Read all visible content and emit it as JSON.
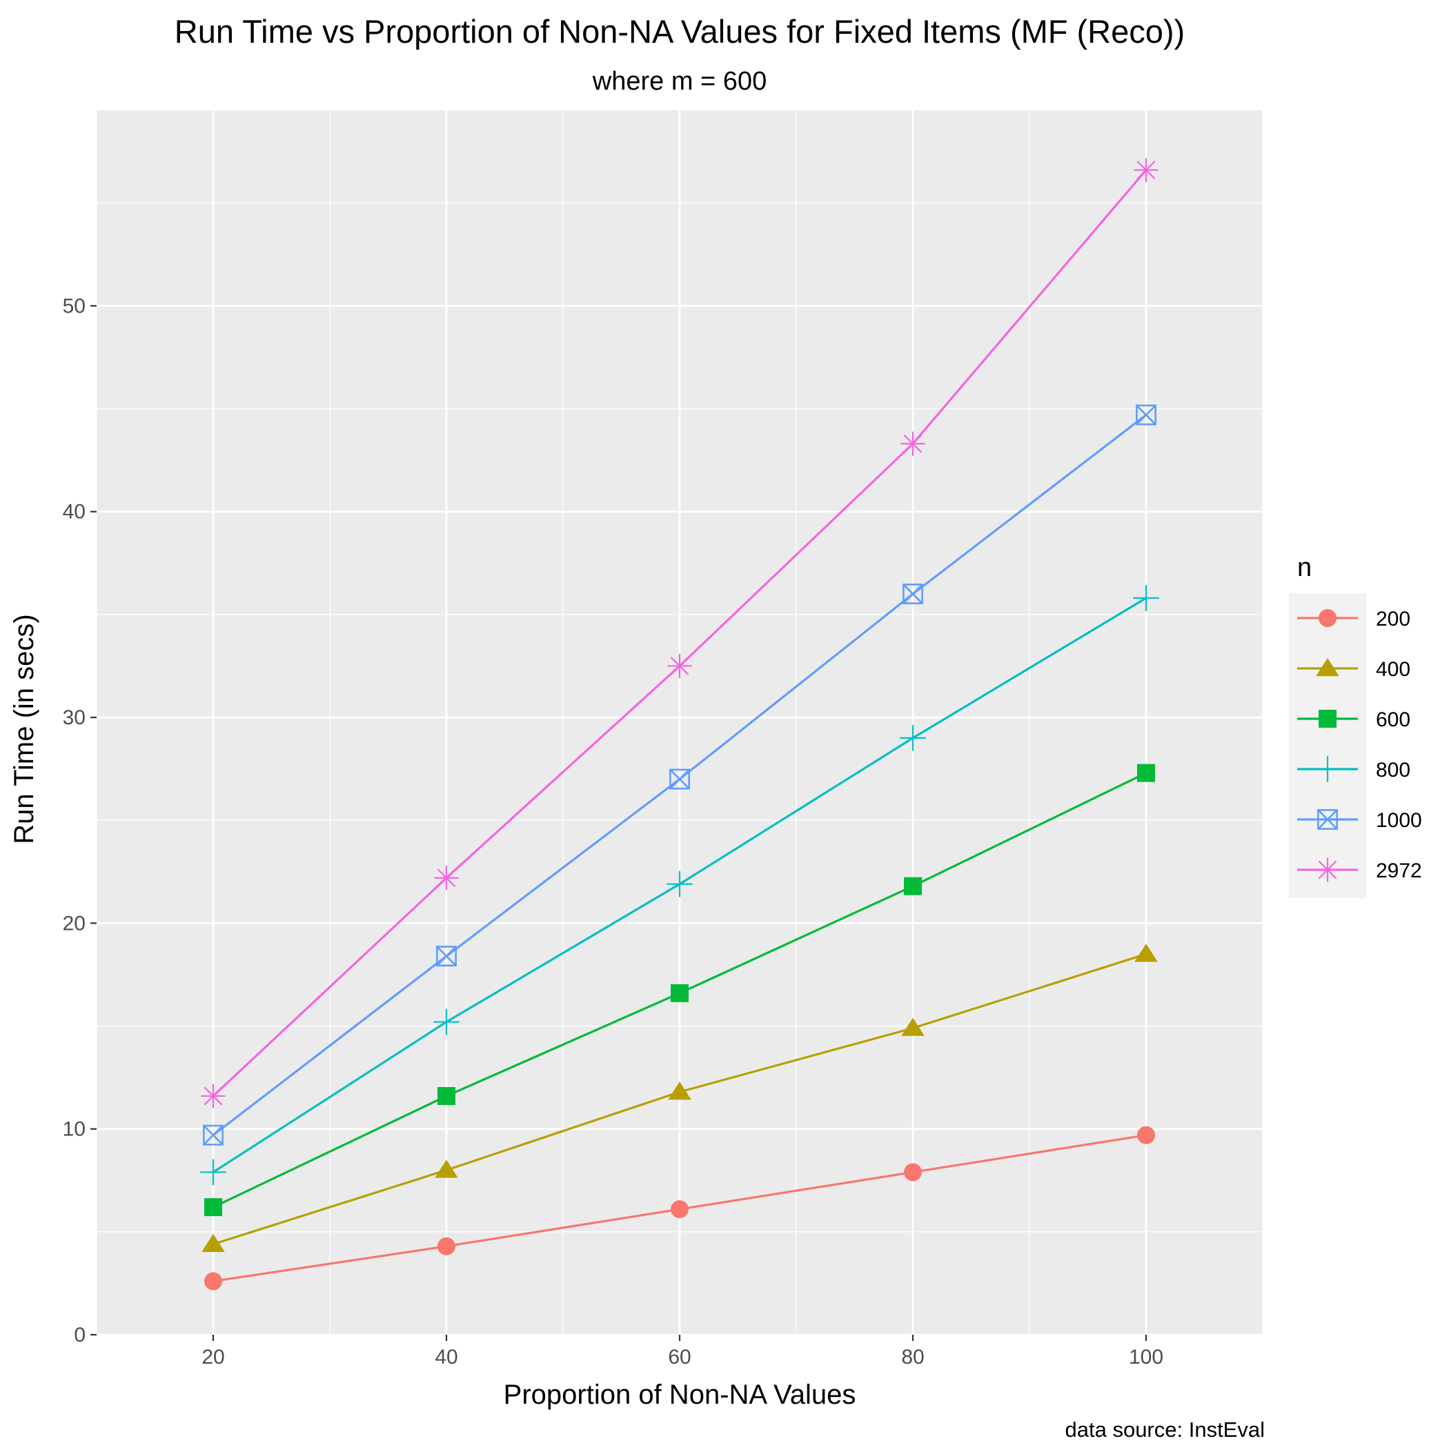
{
  "chart_data": {
    "type": "line",
    "title": "Run Time vs Proportion of Non-NA Values for Fixed Items (MF (Reco))",
    "subtitle": "where m = 600",
    "xlabel": "Proportion of Non-NA Values",
    "ylabel": "Run Time (in secs)",
    "caption": "data source: InstEval",
    "legend_title": "n",
    "legend_position": "right",
    "grid": true,
    "xlim": [
      10,
      110
    ],
    "ylim": [
      0,
      59.5
    ],
    "x_ticks": [
      20,
      40,
      60,
      80,
      100
    ],
    "y_ticks": [
      0,
      10,
      20,
      30,
      40,
      50
    ],
    "x": [
      20,
      40,
      60,
      80,
      100
    ],
    "series": [
      {
        "name": "200",
        "color": "#F8766D",
        "marker": "circle",
        "values": [
          2.6,
          4.3,
          6.1,
          7.9,
          9.7
        ]
      },
      {
        "name": "400",
        "color": "#B79F00",
        "marker": "triangle",
        "values": [
          4.4,
          8.0,
          11.8,
          14.9,
          18.5
        ]
      },
      {
        "name": "600",
        "color": "#00BA38",
        "marker": "square",
        "values": [
          6.2,
          11.6,
          16.6,
          21.8,
          27.3
        ]
      },
      {
        "name": "800",
        "color": "#00BFC4",
        "marker": "plus",
        "values": [
          7.9,
          15.2,
          21.9,
          29.0,
          35.8
        ]
      },
      {
        "name": "1000",
        "color": "#619CFF",
        "marker": "square-cross",
        "values": [
          9.7,
          18.4,
          27.0,
          36.0,
          44.7
        ]
      },
      {
        "name": "2972",
        "color": "#F564E3",
        "marker": "asterisk",
        "values": [
          11.6,
          22.2,
          32.5,
          43.3,
          56.6
        ]
      }
    ]
  }
}
